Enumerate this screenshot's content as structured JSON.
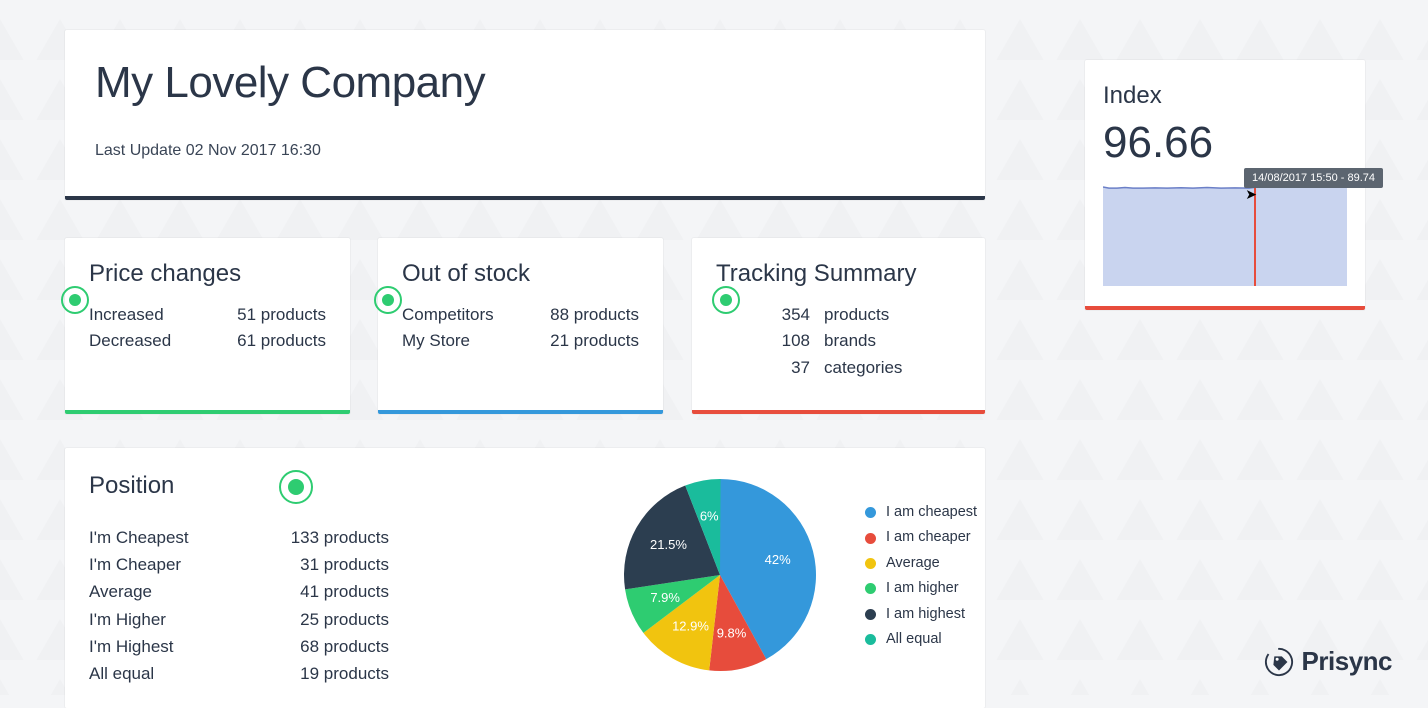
{
  "header": {
    "title": "My Lovely Company",
    "last_update": "Last Update 02 Nov 2017 16:30"
  },
  "index": {
    "title": "Index",
    "value": "96.66",
    "tooltip": "14/08/2017 15:50 - 89.74",
    "chart": {
      "type": "area",
      "stroke": "#6b7fc7",
      "fill": "#c9d4ef",
      "rule_color": "#e74c3c",
      "rule_x": 152,
      "ylim": [
        0,
        100
      ],
      "points": [
        [
          0,
          90
        ],
        [
          6,
          89
        ],
        [
          14,
          89
        ],
        [
          22,
          89.5
        ],
        [
          30,
          89
        ],
        [
          40,
          89
        ],
        [
          52,
          89.2
        ],
        [
          64,
          89
        ],
        [
          78,
          89.3
        ],
        [
          90,
          89
        ],
        [
          104,
          89.5
        ],
        [
          118,
          89
        ],
        [
          132,
          89.2
        ],
        [
          146,
          89
        ],
        [
          152,
          89.7
        ],
        [
          160,
          92
        ],
        [
          176,
          92
        ],
        [
          190,
          91.8
        ],
        [
          206,
          92
        ],
        [
          222,
          92
        ],
        [
          244,
          92
        ]
      ]
    },
    "card_border": "#e74c3c"
  },
  "price_changes": {
    "title": "Price changes",
    "rows": [
      {
        "label": "Increased",
        "value": "51 products"
      },
      {
        "label": "Decreased",
        "value": "61 products"
      }
    ],
    "card_border": "#2ecc71"
  },
  "out_of_stock": {
    "title": "Out of stock",
    "rows": [
      {
        "label": "Competitors",
        "value": "88 products"
      },
      {
        "label": "My Store",
        "value": "21 products"
      }
    ],
    "card_border": "#3498db"
  },
  "tracking_summary": {
    "title": "Tracking Summary",
    "rows": [
      {
        "num": "354",
        "label": "products"
      },
      {
        "num": "108",
        "label": "brands"
      },
      {
        "num": "37",
        "label": "categories"
      }
    ],
    "card_border": "#e74c3c"
  },
  "position": {
    "title": "Position",
    "rows": [
      {
        "label": "I'm Cheapest",
        "value": "133 products"
      },
      {
        "label": "I'm Cheaper",
        "value": "31 products"
      },
      {
        "label": "Average",
        "value": "41 products"
      },
      {
        "label": "I'm Higher",
        "value": "25 products"
      },
      {
        "label": "I'm Highest",
        "value": "68 products"
      },
      {
        "label": "All equal",
        "value": "19 products"
      }
    ],
    "pie": {
      "type": "pie",
      "radius": 96,
      "label_fontsize": 13,
      "slices": [
        {
          "label": "I am cheapest",
          "pct": 42.0,
          "color": "#3498db",
          "text": "42%"
        },
        {
          "label": "I am cheaper",
          "pct": 9.8,
          "color": "#e74c3c",
          "text": "9.8%"
        },
        {
          "label": "Average",
          "pct": 12.9,
          "color": "#f1c40f",
          "text": "12.9%"
        },
        {
          "label": "I am higher",
          "pct": 7.9,
          "color": "#2ecc71",
          "text": "7.9%"
        },
        {
          "label": "I am highest",
          "pct": 21.5,
          "color": "#2c3e50",
          "text": "21.5%"
        },
        {
          "label": "All equal",
          "pct": 6.0,
          "color": "#1abc9c",
          "text": "6%"
        }
      ]
    }
  },
  "brand": {
    "name": "Prisync"
  },
  "colors": {
    "text": "#2b3648",
    "bg": "#f4f5f7",
    "refresh": "#2ecc71"
  }
}
